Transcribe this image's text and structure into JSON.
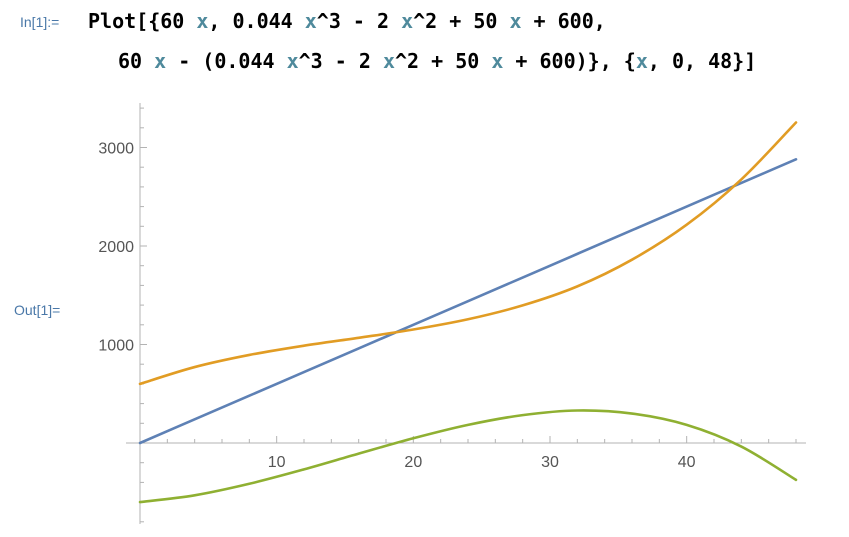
{
  "notebook": {
    "input_label": "In[1]:=",
    "output_label": "Out[1]=",
    "input_line_1": [
      {
        "t": "Plot[{60 ",
        "c": "k"
      },
      {
        "t": "x",
        "c": "v"
      },
      {
        "t": ", 0.044 ",
        "c": "k"
      },
      {
        "t": "x",
        "c": "v"
      },
      {
        "t": "^3 - 2 ",
        "c": "k"
      },
      {
        "t": "x",
        "c": "v"
      },
      {
        "t": "^2 + 50 ",
        "c": "k"
      },
      {
        "t": "x",
        "c": "v"
      },
      {
        "t": " + 600,",
        "c": "k"
      }
    ],
    "input_line_2": [
      {
        "t": "60 ",
        "c": "k"
      },
      {
        "t": "x",
        "c": "v"
      },
      {
        "t": " - (0.044 ",
        "c": "k"
      },
      {
        "t": "x",
        "c": "v"
      },
      {
        "t": "^3 - 2 ",
        "c": "k"
      },
      {
        "t": "x",
        "c": "v"
      },
      {
        "t": "^2 + 50 ",
        "c": "k"
      },
      {
        "t": "x",
        "c": "v"
      },
      {
        "t": " + 600)}, {",
        "c": "k"
      },
      {
        "t": "x",
        "c": "v"
      },
      {
        "t": ", 0, 48}]",
        "c": "k"
      }
    ],
    "colors": {
      "label": "#4a78a8",
      "variable": "#4f8a9c"
    }
  },
  "chart_data": {
    "type": "line",
    "title": "",
    "xlabel": "",
    "ylabel": "",
    "xlim": [
      0,
      48
    ],
    "ylim": [
      -800,
      3400
    ],
    "x_ticks": [
      10,
      20,
      30,
      40
    ],
    "y_ticks": [
      1000,
      2000,
      3000
    ],
    "grid": false,
    "x": [
      0,
      4,
      8,
      12,
      16,
      20,
      24,
      28,
      32,
      36,
      40,
      44,
      48
    ],
    "series": [
      {
        "color": "#5e81b5",
        "values": [
          0,
          240,
          480,
          720,
          960,
          1200,
          1440,
          1680,
          1920,
          2160,
          2400,
          2640,
          2880
        ]
      },
      {
        "color": "#e19c24",
        "values": [
          600,
          771,
          894,
          988,
          1068,
          1152,
          1256,
          1397,
          1590,
          1861,
          2216,
          2676,
          3254
        ]
      },
      {
        "color": "#8fb032",
        "values": [
          -600,
          -531,
          -414,
          -268,
          -108,
          48,
          184,
          283,
          330,
          299,
          184,
          -36,
          -374
        ]
      }
    ]
  }
}
